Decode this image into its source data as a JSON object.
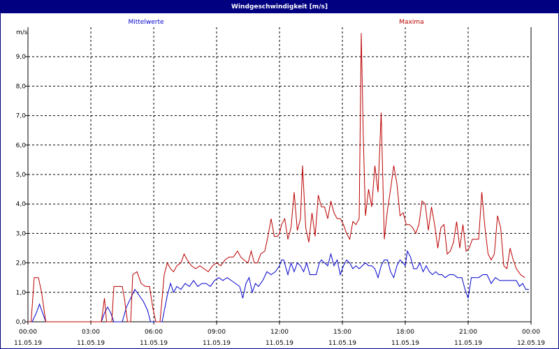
{
  "window": {
    "title": "Windgeschwindigkeit [m/s]"
  },
  "colors": {
    "titlebar": "#000080",
    "mean": "#0000cc",
    "max": "#bb0000",
    "grid": "#000000"
  },
  "chart_data": {
    "type": "line",
    "title": "Windgeschwindigkeit [m/s]",
    "ylabel": "m/s",
    "ylim": [
      0,
      10
    ],
    "yticks": [
      "0,0",
      "1,0",
      "2,0",
      "3,0",
      "4,0",
      "5,0",
      "6,0",
      "7,0",
      "8,0",
      "9,0"
    ],
    "xlim": [
      0,
      24
    ],
    "xticks": [
      {
        "time": "00:00",
        "date": "11.05.19"
      },
      {
        "time": "03:00",
        "date": "11.05.19"
      },
      {
        "time": "06:00",
        "date": "11.05.19"
      },
      {
        "time": "09:00",
        "date": "11.05.19"
      },
      {
        "time": "12:00",
        "date": "11.05.19"
      },
      {
        "time": "15:00",
        "date": "11.05.19"
      },
      {
        "time": "18:00",
        "date": "11.05.19"
      },
      {
        "time": "21:00",
        "date": "11.05.19"
      },
      {
        "time": "00:00",
        "date": "12.05.19"
      }
    ],
    "grid": true,
    "legend_position": "top",
    "series": [
      {
        "name": "Mittelwerte",
        "color": "#0000cc",
        "points": [
          [
            0.0,
            0.0
          ],
          [
            0.2,
            0.0
          ],
          [
            0.4,
            0.3
          ],
          [
            0.55,
            0.6
          ],
          [
            0.7,
            0.3
          ],
          [
            0.85,
            0.0
          ],
          [
            1.0,
            0.0
          ],
          [
            1.5,
            0.0
          ],
          [
            2.0,
            0.0
          ],
          [
            2.5,
            0.0
          ],
          [
            3.0,
            0.0
          ],
          [
            3.3,
            0.0
          ],
          [
            3.5,
            0.0
          ],
          [
            3.65,
            0.3
          ],
          [
            3.8,
            0.5
          ],
          [
            3.95,
            0.3
          ],
          [
            4.1,
            0.0
          ],
          [
            4.3,
            0.0
          ],
          [
            4.5,
            0.0
          ],
          [
            4.7,
            0.5
          ],
          [
            4.9,
            0.8
          ],
          [
            5.1,
            1.1
          ],
          [
            5.3,
            0.9
          ],
          [
            5.5,
            0.7
          ],
          [
            5.7,
            0.4
          ],
          [
            5.85,
            0.0
          ],
          [
            6.0,
            0.0
          ],
          [
            6.2,
            0.0
          ],
          [
            6.4,
            0.0
          ],
          [
            6.65,
            0.9
          ],
          [
            6.8,
            1.3
          ],
          [
            6.95,
            1.0
          ],
          [
            7.1,
            1.2
          ],
          [
            7.3,
            1.1
          ],
          [
            7.5,
            1.3
          ],
          [
            7.7,
            1.2
          ],
          [
            7.9,
            1.4
          ],
          [
            8.1,
            1.2
          ],
          [
            8.3,
            1.3
          ],
          [
            8.5,
            1.3
          ],
          [
            8.7,
            1.2
          ],
          [
            8.9,
            1.4
          ],
          [
            9.1,
            1.5
          ],
          [
            9.3,
            1.4
          ],
          [
            9.5,
            1.5
          ],
          [
            9.7,
            1.4
          ],
          [
            9.9,
            1.3
          ],
          [
            10.1,
            1.2
          ],
          [
            10.25,
            0.8
          ],
          [
            10.4,
            1.3
          ],
          [
            10.55,
            1.5
          ],
          [
            10.7,
            1.0
          ],
          [
            10.85,
            1.3
          ],
          [
            11.0,
            1.2
          ],
          [
            11.2,
            1.4
          ],
          [
            11.4,
            1.7
          ],
          [
            11.6,
            1.6
          ],
          [
            11.8,
            1.7
          ],
          [
            12.0,
            1.9
          ],
          [
            12.1,
            2.1
          ],
          [
            12.2,
            2.1
          ],
          [
            12.4,
            1.6
          ],
          [
            12.55,
            2.0
          ],
          [
            12.7,
            1.7
          ],
          [
            12.85,
            2.0
          ],
          [
            13.0,
            1.9
          ],
          [
            13.15,
            1.7
          ],
          [
            13.3,
            2.0
          ],
          [
            13.45,
            1.6
          ],
          [
            13.6,
            1.6
          ],
          [
            13.75,
            1.6
          ],
          [
            13.9,
            2.0
          ],
          [
            14.0,
            2.1
          ],
          [
            14.15,
            2.0
          ],
          [
            14.3,
            1.9
          ],
          [
            14.45,
            2.3
          ],
          [
            14.6,
            1.9
          ],
          [
            14.75,
            2.1
          ],
          [
            14.9,
            1.6
          ],
          [
            15.05,
            1.9
          ],
          [
            15.2,
            2.1
          ],
          [
            15.35,
            2.0
          ],
          [
            15.5,
            1.8
          ],
          [
            15.65,
            1.9
          ],
          [
            15.8,
            1.8
          ],
          [
            15.95,
            1.9
          ],
          [
            16.1,
            2.0
          ],
          [
            16.25,
            1.9
          ],
          [
            16.4,
            1.9
          ],
          [
            16.55,
            1.8
          ],
          [
            16.7,
            1.5
          ],
          [
            16.85,
            1.9
          ],
          [
            17.0,
            2.1
          ],
          [
            17.15,
            2.1
          ],
          [
            17.3,
            1.7
          ],
          [
            17.45,
            1.5
          ],
          [
            17.6,
            1.9
          ],
          [
            17.75,
            2.1
          ],
          [
            17.9,
            2.0
          ],
          [
            18.0,
            1.9
          ],
          [
            18.1,
            2.4
          ],
          [
            18.25,
            2.2
          ],
          [
            18.4,
            1.8
          ],
          [
            18.55,
            1.8
          ],
          [
            18.7,
            2.0
          ],
          [
            18.85,
            1.7
          ],
          [
            19.0,
            1.9
          ],
          [
            19.15,
            1.7
          ],
          [
            19.3,
            1.6
          ],
          [
            19.45,
            1.7
          ],
          [
            19.6,
            1.6
          ],
          [
            19.75,
            1.6
          ],
          [
            19.9,
            1.5
          ],
          [
            20.1,
            1.6
          ],
          [
            20.3,
            1.6
          ],
          [
            20.5,
            1.5
          ],
          [
            20.7,
            1.5
          ],
          [
            20.85,
            1.1
          ],
          [
            21.0,
            0.8
          ],
          [
            21.15,
            1.5
          ],
          [
            21.3,
            1.5
          ],
          [
            21.5,
            1.5
          ],
          [
            21.7,
            1.6
          ],
          [
            21.9,
            1.6
          ],
          [
            22.1,
            1.3
          ],
          [
            22.3,
            1.5
          ],
          [
            22.5,
            1.4
          ],
          [
            22.7,
            1.4
          ],
          [
            22.9,
            1.4
          ],
          [
            23.1,
            1.4
          ],
          [
            23.3,
            1.4
          ],
          [
            23.45,
            1.2
          ],
          [
            23.6,
            1.3
          ],
          [
            23.75,
            1.1
          ],
          [
            23.9,
            1.1
          ]
        ]
      },
      {
        "name": "Maxima",
        "color": "#bb0000",
        "points": [
          [
            0.0,
            0.0
          ],
          [
            0.15,
            0.0
          ],
          [
            0.3,
            1.5
          ],
          [
            0.5,
            1.5
          ],
          [
            0.65,
            1.0
          ],
          [
            0.85,
            0.0
          ],
          [
            1.0,
            0.0
          ],
          [
            1.5,
            0.0
          ],
          [
            2.0,
            0.0
          ],
          [
            2.5,
            0.0
          ],
          [
            3.0,
            0.0
          ],
          [
            3.3,
            0.0
          ],
          [
            3.5,
            0.0
          ],
          [
            3.65,
            0.8
          ],
          [
            3.75,
            0.0
          ],
          [
            3.85,
            0.0
          ],
          [
            4.0,
            0.0
          ],
          [
            4.1,
            1.2
          ],
          [
            4.3,
            1.2
          ],
          [
            4.5,
            1.2
          ],
          [
            4.6,
            0.8
          ],
          [
            4.75,
            0.0
          ],
          [
            4.9,
            0.0
          ],
          [
            5.0,
            1.6
          ],
          [
            5.2,
            1.7
          ],
          [
            5.4,
            1.3
          ],
          [
            5.6,
            1.2
          ],
          [
            5.8,
            1.2
          ],
          [
            5.95,
            0.5
          ],
          [
            6.1,
            0.0
          ],
          [
            6.3,
            0.0
          ],
          [
            6.5,
            1.6
          ],
          [
            6.65,
            2.0
          ],
          [
            6.8,
            1.8
          ],
          [
            6.95,
            1.7
          ],
          [
            7.1,
            1.9
          ],
          [
            7.3,
            2.0
          ],
          [
            7.45,
            2.3
          ],
          [
            7.6,
            2.1
          ],
          [
            7.8,
            1.9
          ],
          [
            8.0,
            1.8
          ],
          [
            8.2,
            1.9
          ],
          [
            8.4,
            1.8
          ],
          [
            8.6,
            1.7
          ],
          [
            8.8,
            1.9
          ],
          [
            9.0,
            2.0
          ],
          [
            9.2,
            1.9
          ],
          [
            9.4,
            2.1
          ],
          [
            9.6,
            2.2
          ],
          [
            9.8,
            2.2
          ],
          [
            10.0,
            2.4
          ],
          [
            10.15,
            2.2
          ],
          [
            10.3,
            2.1
          ],
          [
            10.5,
            2.0
          ],
          [
            10.65,
            2.4
          ],
          [
            10.8,
            2.0
          ],
          [
            10.95,
            2.0
          ],
          [
            11.1,
            2.3
          ],
          [
            11.3,
            2.4
          ],
          [
            11.45,
            2.9
          ],
          [
            11.6,
            3.5
          ],
          [
            11.75,
            2.9
          ],
          [
            11.9,
            2.9
          ],
          [
            12.0,
            3.0
          ],
          [
            12.1,
            3.3
          ],
          [
            12.25,
            3.5
          ],
          [
            12.4,
            2.8
          ],
          [
            12.55,
            3.2
          ],
          [
            12.7,
            4.4
          ],
          [
            12.85,
            3.1
          ],
          [
            13.0,
            3.5
          ],
          [
            13.1,
            5.3
          ],
          [
            13.25,
            3.2
          ],
          [
            13.4,
            2.7
          ],
          [
            13.55,
            3.7
          ],
          [
            13.7,
            2.9
          ],
          [
            13.85,
            4.3
          ],
          [
            14.0,
            3.9
          ],
          [
            14.15,
            3.9
          ],
          [
            14.3,
            3.5
          ],
          [
            14.45,
            4.1
          ],
          [
            14.6,
            3.7
          ],
          [
            14.75,
            3.5
          ],
          [
            14.9,
            3.5
          ],
          [
            15.05,
            3.3
          ],
          [
            15.2,
            3.0
          ],
          [
            15.35,
            2.8
          ],
          [
            15.5,
            3.4
          ],
          [
            15.65,
            3.3
          ],
          [
            15.8,
            3.5
          ],
          [
            15.9,
            9.8
          ],
          [
            16.0,
            6.2
          ],
          [
            16.1,
            3.6
          ],
          [
            16.25,
            4.5
          ],
          [
            16.4,
            3.9
          ],
          [
            16.55,
            5.3
          ],
          [
            16.7,
            4.4
          ],
          [
            16.85,
            7.1
          ],
          [
            17.0,
            2.8
          ],
          [
            17.15,
            3.8
          ],
          [
            17.3,
            4.5
          ],
          [
            17.45,
            5.3
          ],
          [
            17.6,
            4.7
          ],
          [
            17.75,
            3.6
          ],
          [
            17.9,
            3.7
          ],
          [
            18.05,
            3.3
          ],
          [
            18.2,
            3.3
          ],
          [
            18.35,
            3.2
          ],
          [
            18.5,
            3.0
          ],
          [
            18.65,
            3.3
          ],
          [
            18.8,
            4.1
          ],
          [
            18.95,
            4.0
          ],
          [
            19.1,
            3.1
          ],
          [
            19.25,
            3.9
          ],
          [
            19.4,
            3.3
          ],
          [
            19.55,
            2.5
          ],
          [
            19.7,
            3.2
          ],
          [
            19.85,
            3.3
          ],
          [
            20.0,
            2.3
          ],
          [
            20.15,
            2.4
          ],
          [
            20.3,
            2.7
          ],
          [
            20.45,
            3.4
          ],
          [
            20.6,
            2.5
          ],
          [
            20.75,
            3.3
          ],
          [
            20.9,
            2.4
          ],
          [
            21.05,
            2.5
          ],
          [
            21.2,
            2.8
          ],
          [
            21.35,
            2.8
          ],
          [
            21.5,
            2.8
          ],
          [
            21.65,
            4.4
          ],
          [
            21.8,
            3.2
          ],
          [
            21.95,
            2.3
          ],
          [
            22.1,
            2.1
          ],
          [
            22.25,
            2.3
          ],
          [
            22.4,
            3.6
          ],
          [
            22.55,
            3.2
          ],
          [
            22.7,
            1.9
          ],
          [
            22.85,
            1.8
          ],
          [
            23.0,
            2.5
          ],
          [
            23.15,
            2.1
          ],
          [
            23.3,
            1.8
          ],
          [
            23.5,
            1.6
          ],
          [
            23.7,
            1.5
          ]
        ]
      }
    ]
  }
}
